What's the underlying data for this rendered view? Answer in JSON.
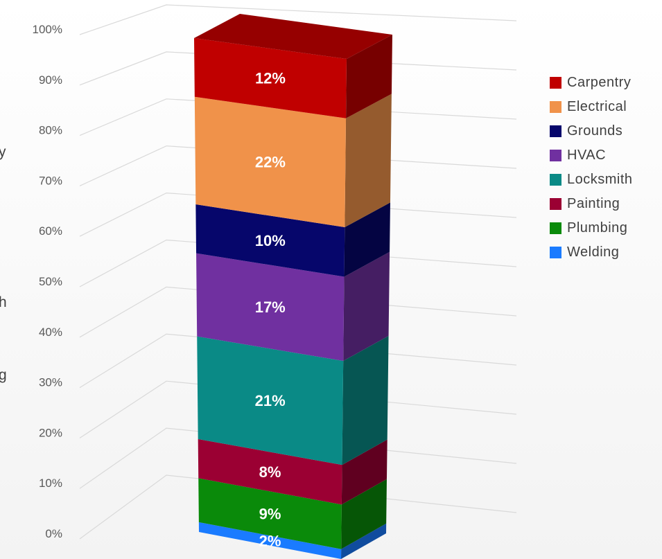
{
  "chart_data": {
    "type": "bar",
    "stacked": true,
    "percent_stacked": true,
    "three_d": true,
    "categories": [
      ""
    ],
    "series": [
      {
        "name": "Welding",
        "values": [
          2
        ],
        "label": "2%",
        "color": "#1a7bff"
      },
      {
        "name": "Plumbing",
        "values": [
          9
        ],
        "label": "9%",
        "color": "#0a8a0a"
      },
      {
        "name": "Painting",
        "values": [
          8
        ],
        "label": "8%",
        "color": "#9b0033"
      },
      {
        "name": "Locksmith",
        "values": [
          21
        ],
        "label": "21%",
        "color": "#0a8a86"
      },
      {
        "name": "HVAC",
        "values": [
          17
        ],
        "label": "17%",
        "color": "#7030a0"
      },
      {
        "name": "Grounds",
        "values": [
          10
        ],
        "label": "10%",
        "color": "#06066b"
      },
      {
        "name": "Electrical",
        "values": [
          22
        ],
        "label": "22%",
        "color": "#f0924a"
      },
      {
        "name": "Carpentry",
        "values": [
          12
        ],
        "label": "12%",
        "color": "#c00000"
      }
    ],
    "y_ticks": [
      "0%",
      "10%",
      "20%",
      "30%",
      "40%",
      "50%",
      "60%",
      "70%",
      "80%",
      "90%",
      "100%"
    ],
    "ylim": [
      0,
      100
    ],
    "grid": true,
    "legend_position": "right",
    "legend": [
      "Carpentry",
      "Electrical",
      "Grounds",
      "HVAC",
      "Locksmith",
      "Painting",
      "Plumbing",
      "Welding"
    ]
  },
  "left_edge_fragments": [
    "y",
    "h",
    "g"
  ]
}
